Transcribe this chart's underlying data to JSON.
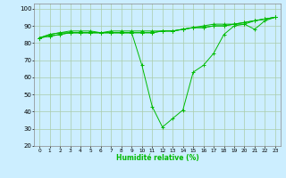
{
  "xlabel": "Humidité relative (%)",
  "ylabel": "",
  "background_color": "#cceeff",
  "grid_color": "#aaccaa",
  "line_color": "#00bb00",
  "xlim": [
    -0.5,
    23.5
  ],
  "ylim": [
    20,
    103
  ],
  "yticks": [
    20,
    30,
    40,
    50,
    60,
    70,
    80,
    90,
    100
  ],
  "xticks": [
    0,
    1,
    2,
    3,
    4,
    5,
    6,
    7,
    8,
    9,
    10,
    11,
    12,
    13,
    14,
    15,
    16,
    17,
    18,
    19,
    20,
    21,
    22,
    23
  ],
  "xtick_labels": [
    "0",
    "1",
    "2",
    "3",
    "4",
    "5",
    "6",
    "7",
    "8",
    "9",
    "10",
    "11",
    "12",
    "13",
    "14",
    "15",
    "16",
    "17",
    "18",
    "19",
    "20",
    "21",
    "22",
    "23"
  ],
  "series": [
    [
      83,
      85,
      86,
      87,
      87,
      87,
      86,
      87,
      87,
      87,
      87,
      87,
      87,
      87,
      88,
      89,
      90,
      91,
      91,
      91,
      91,
      93,
      94,
      95
    ],
    [
      83,
      85,
      86,
      86,
      86,
      86,
      86,
      86,
      86,
      86,
      86,
      86,
      87,
      87,
      88,
      89,
      89,
      90,
      90,
      91,
      92,
      93,
      94,
      95
    ],
    [
      83,
      84,
      85,
      86,
      86,
      86,
      86,
      86,
      86,
      86,
      67,
      43,
      31,
      36,
      41,
      63,
      67,
      74,
      85,
      90,
      91,
      88,
      93,
      95
    ],
    [
      83,
      84,
      85,
      86,
      86,
      86,
      86,
      86,
      86,
      86,
      86,
      86,
      87,
      87,
      88,
      89,
      89,
      90,
      90,
      91,
      92,
      93,
      94,
      95
    ]
  ]
}
